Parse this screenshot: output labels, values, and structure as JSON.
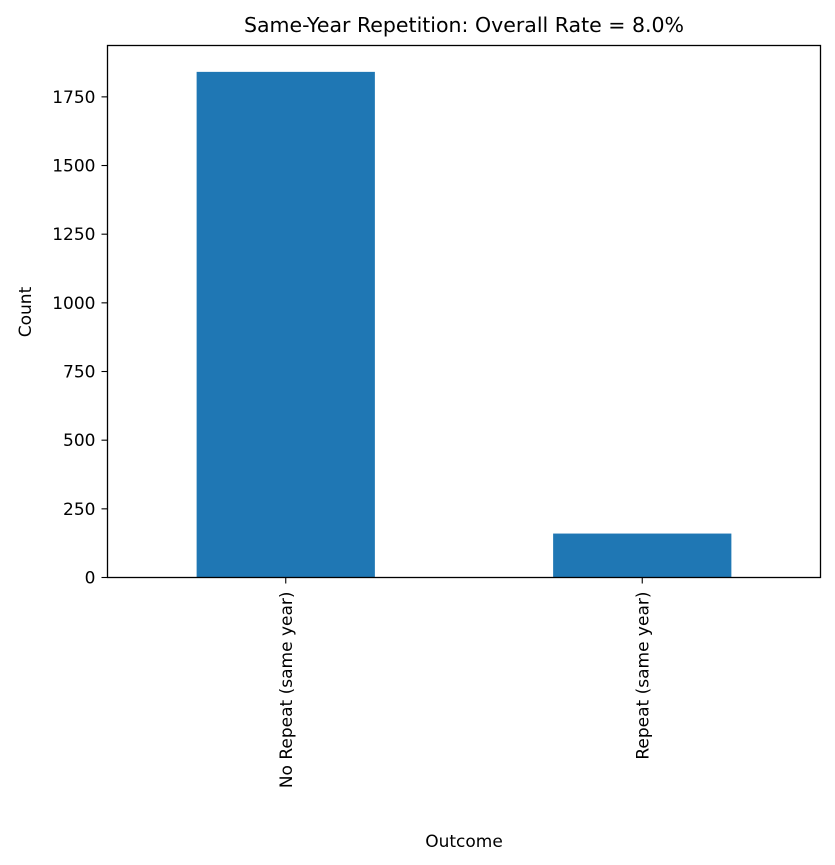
{
  "chart_data": {
    "type": "bar",
    "title": "Same-Year Repetition: Overall Rate = 8.0%",
    "xlabel": "Outcome",
    "ylabel": "Count",
    "categories": [
      "No Repeat (same year)",
      "Repeat (same year)"
    ],
    "values": [
      1841,
      160
    ],
    "ylim": [
      0,
      1937
    ],
    "yticks": [
      0,
      250,
      500,
      750,
      1000,
      1250,
      1500,
      1750
    ],
    "grid": false,
    "legend": "none",
    "bar_color": "#1f77b4"
  }
}
